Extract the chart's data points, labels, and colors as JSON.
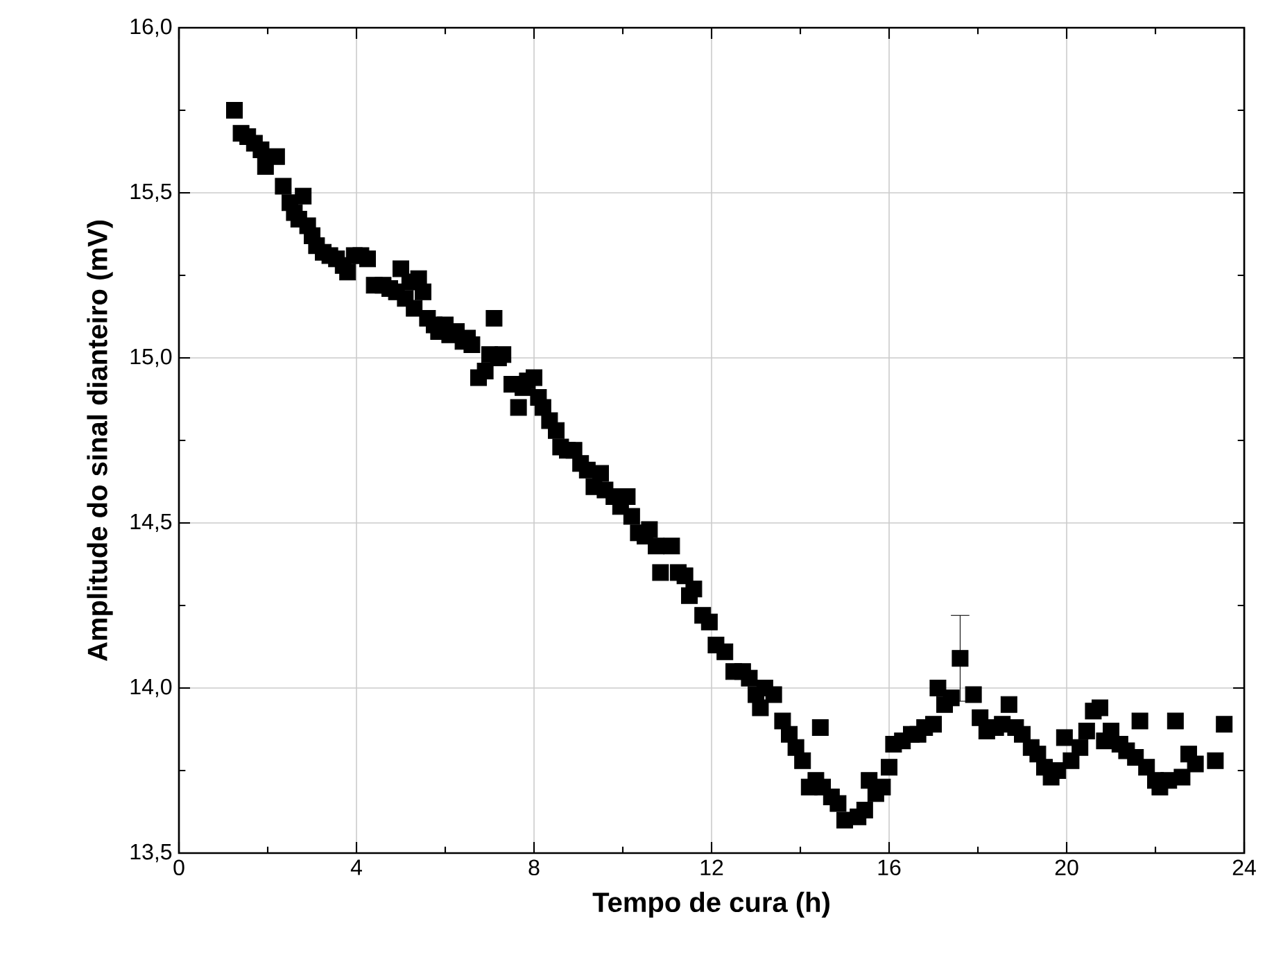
{
  "chart_data": {
    "type": "scatter",
    "xlabel": "Tempo de cura (h)",
    "ylabel": "Amplitude do sinal dianteiro (mV)",
    "xlim": [
      0,
      24
    ],
    "ylim": [
      13.5,
      16.0
    ],
    "xticks": [
      0,
      4,
      8,
      12,
      16,
      20,
      24
    ],
    "yticks": [
      {
        "value": 13.5,
        "label": "13,5"
      },
      {
        "value": 14.0,
        "label": "14,0"
      },
      {
        "value": 14.5,
        "label": "14,5"
      },
      {
        "value": 15.0,
        "label": "15,0"
      },
      {
        "value": 15.5,
        "label": "15,5"
      },
      {
        "value": 16.0,
        "label": "16,0"
      }
    ],
    "grid": true,
    "marker": "square",
    "series": [
      {
        "color": "#000000",
        "x": [
          1.25,
          1.4,
          1.55,
          1.7,
          1.85,
          1.95,
          2.2,
          2.35,
          2.5,
          2.6,
          2.7,
          2.8,
          2.9,
          3.0,
          3.1,
          3.25,
          3.4,
          3.55,
          3.7,
          3.8,
          3.95,
          4.1,
          4.25,
          4.4,
          4.6,
          4.75,
          4.9,
          5.0,
          5.1,
          5.2,
          5.3,
          5.4,
          5.5,
          5.6,
          5.75,
          5.85,
          6.0,
          6.1,
          6.25,
          6.4,
          6.5,
          6.6,
          6.75,
          6.9,
          7.0,
          7.1,
          7.2,
          7.3,
          7.5,
          7.65,
          7.75,
          7.85,
          8.0,
          8.1,
          8.2,
          8.35,
          8.5,
          8.6,
          8.75,
          8.9,
          9.05,
          9.2,
          9.35,
          9.5,
          9.6,
          9.8,
          9.95,
          10.1,
          10.2,
          10.35,
          10.5,
          10.6,
          10.75,
          10.85,
          11.1,
          11.25,
          11.4,
          11.5,
          11.6,
          11.8,
          11.95,
          12.1,
          12.3,
          12.5,
          12.7,
          12.85,
          13.0,
          13.1,
          13.2,
          13.4,
          13.6,
          13.75,
          13.9,
          14.05,
          14.2,
          14.35,
          14.45,
          14.5,
          14.7,
          14.85,
          15.0,
          15.3,
          15.45,
          15.55,
          15.7,
          15.85,
          16.0,
          16.1,
          16.3,
          16.5,
          16.65,
          16.8,
          17.0,
          17.1,
          17.25,
          17.4,
          17.9,
          18.05,
          18.2,
          18.4,
          18.55,
          18.7,
          18.85,
          19.0,
          19.2,
          19.35,
          19.5,
          19.65,
          19.8,
          19.95,
          20.1,
          20.3,
          20.45,
          20.6,
          20.75,
          20.85,
          21.0,
          21.2,
          21.35,
          21.55,
          21.65,
          21.8,
          22.0,
          22.1,
          22.3,
          22.45,
          22.6,
          22.75,
          22.9,
          23.35,
          23.55
        ],
        "values": [
          15.75,
          15.68,
          15.67,
          15.65,
          15.63,
          15.58,
          15.61,
          15.52,
          15.47,
          15.44,
          15.42,
          15.49,
          15.4,
          15.37,
          15.34,
          15.32,
          15.31,
          15.3,
          15.28,
          15.26,
          15.31,
          15.31,
          15.3,
          15.22,
          15.22,
          15.21,
          15.2,
          15.27,
          15.18,
          15.23,
          15.15,
          15.24,
          15.2,
          15.12,
          15.1,
          15.08,
          15.1,
          15.07,
          15.08,
          15.05,
          15.06,
          15.04,
          14.94,
          14.96,
          15.01,
          15.12,
          15.0,
          15.01,
          14.92,
          14.85,
          14.91,
          14.93,
          14.94,
          14.88,
          14.85,
          14.81,
          14.78,
          14.73,
          14.72,
          14.72,
          14.68,
          14.66,
          14.61,
          14.65,
          14.6,
          14.58,
          14.55,
          14.58,
          14.52,
          14.47,
          14.46,
          14.48,
          14.43,
          14.35,
          14.43,
          14.35,
          14.34,
          14.28,
          14.3,
          14.22,
          14.2,
          14.13,
          14.11,
          14.05,
          14.05,
          14.03,
          13.98,
          13.94,
          14.0,
          13.98,
          13.9,
          13.86,
          13.82,
          13.78,
          13.7,
          13.72,
          13.88,
          13.7,
          13.67,
          13.65,
          13.6,
          13.61,
          13.63,
          13.72,
          13.68,
          13.7,
          13.76,
          13.83,
          13.84,
          13.86,
          13.86,
          13.88,
          13.89,
          14.0,
          13.95,
          13.97,
          13.98,
          13.91,
          13.87,
          13.88,
          13.89,
          13.95,
          13.88,
          13.86,
          13.82,
          13.8,
          13.76,
          13.73,
          13.75,
          13.85,
          13.78,
          13.82,
          13.87,
          13.93,
          13.94,
          13.84,
          13.87,
          13.83,
          13.81,
          13.79,
          13.9,
          13.76,
          13.72,
          13.7,
          13.72,
          13.9,
          13.73,
          13.8,
          13.77,
          13.78,
          13.89
        ]
      },
      {
        "color": "#000000",
        "x": [
          17.6
        ],
        "values": [
          14.09
        ],
        "errors": [
          0.13
        ]
      }
    ]
  }
}
